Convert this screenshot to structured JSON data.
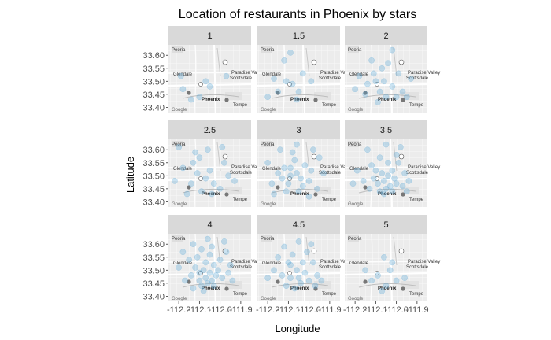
{
  "chart_data": {
    "type": "scatter",
    "title": "Location of restaurants in Phoenix by stars",
    "xlabel": "Longitude",
    "ylabel": "Latitude",
    "xlim": [
      -112.25,
      -111.85
    ],
    "ylim": [
      33.38,
      33.64
    ],
    "x_ticks": [
      -112.2,
      -112.1,
      -112.0,
      -111.9
    ],
    "x_tick_labels": [
      "-112.2",
      "-112.1",
      "-112.0",
      "-111.9"
    ],
    "y_ticks": [
      33.4,
      33.45,
      33.5,
      33.55,
      33.6
    ],
    "y_tick_labels": [
      "33.40",
      "33.45",
      "33.50",
      "33.55",
      "33.60"
    ],
    "facet_variable": "stars",
    "facets": [
      {
        "label": "1",
        "points": [
          [
            -112.18,
            33.47
          ],
          [
            -112.07,
            33.5
          ],
          [
            -112.1,
            33.44
          ],
          [
            -112.05,
            33.48
          ],
          [
            -112.14,
            33.43
          ],
          [
            -111.97,
            33.52
          ],
          [
            -112.19,
            33.52
          ]
        ]
      },
      {
        "label": "1.5",
        "points": [
          [
            -112.12,
            33.58
          ],
          [
            -112.08,
            33.49
          ],
          [
            -112.05,
            33.46
          ],
          [
            -112.15,
            33.46
          ],
          [
            -112.03,
            33.53
          ],
          [
            -112.2,
            33.44
          ],
          [
            -112.09,
            33.61
          ],
          [
            -111.99,
            33.5
          ],
          [
            -112.11,
            33.5
          ],
          [
            -112.06,
            33.43
          ],
          [
            -112.17,
            33.51
          ]
        ]
      },
      {
        "label": "2",
        "points": [
          [
            -112.02,
            33.62
          ],
          [
            -112.12,
            33.58
          ],
          [
            -112.07,
            33.55
          ],
          [
            -112.06,
            33.5
          ],
          [
            -112.1,
            33.5
          ],
          [
            -112.14,
            33.49
          ],
          [
            -112.02,
            33.48
          ],
          [
            -112.08,
            33.46
          ],
          [
            -111.97,
            33.46
          ],
          [
            -111.95,
            33.44
          ],
          [
            -112.15,
            33.45
          ],
          [
            -112.2,
            33.47
          ],
          [
            -111.99,
            33.53
          ],
          [
            -112.05,
            33.44
          ],
          [
            -112.11,
            33.53
          ],
          [
            -111.93,
            33.51
          ],
          [
            -112.18,
            33.52
          ],
          [
            -112.04,
            33.57
          ],
          [
            -112.0,
            33.44
          ],
          [
            -112.09,
            33.42
          ]
        ]
      },
      {
        "label": "2.5",
        "points": [
          [
            -112.2,
            33.61
          ],
          [
            -112.12,
            33.59
          ],
          [
            -112.1,
            33.57
          ],
          [
            -112.05,
            33.52
          ],
          [
            -112.07,
            33.49
          ],
          [
            -112.03,
            33.47
          ],
          [
            -112.14,
            33.47
          ],
          [
            -112.18,
            33.53
          ],
          [
            -111.98,
            33.55
          ],
          [
            -111.93,
            33.48
          ],
          [
            -112.09,
            33.44
          ],
          [
            -112.0,
            33.45
          ],
          [
            -112.16,
            33.43
          ],
          [
            -112.06,
            33.6
          ],
          [
            -112.11,
            33.51
          ],
          [
            -111.96,
            33.5
          ],
          [
            -112.13,
            33.55
          ],
          [
            -112.04,
            33.43
          ],
          [
            -112.22,
            33.48
          ],
          [
            -111.99,
            33.61
          ]
        ]
      },
      {
        "label": "3",
        "points": [
          [
            -112.06,
            33.62
          ],
          [
            -111.98,
            33.6
          ],
          [
            -112.14,
            33.6
          ],
          [
            -112.07,
            33.56
          ],
          [
            -112.12,
            33.53
          ],
          [
            -112.09,
            33.5
          ],
          [
            -112.04,
            33.49
          ],
          [
            -112.0,
            33.48
          ],
          [
            -112.1,
            33.47
          ],
          [
            -112.18,
            33.47
          ],
          [
            -111.96,
            33.45
          ],
          [
            -112.05,
            33.44
          ],
          [
            -112.15,
            33.51
          ],
          [
            -112.02,
            33.54
          ],
          [
            -111.93,
            33.51
          ],
          [
            -112.11,
            33.44
          ],
          [
            -112.2,
            33.55
          ],
          [
            -111.99,
            33.52
          ],
          [
            -112.08,
            33.59
          ],
          [
            -112.03,
            33.46
          ],
          [
            -112.13,
            33.49
          ],
          [
            -112.06,
            33.51
          ],
          [
            -111.95,
            33.57
          ],
          [
            -112.17,
            33.43
          ],
          [
            -112.0,
            33.42
          ],
          [
            -112.09,
            33.53
          ]
        ]
      },
      {
        "label": "3.5",
        "points": [
          [
            -112.05,
            33.62
          ],
          [
            -111.98,
            33.61
          ],
          [
            -112.14,
            33.6
          ],
          [
            -112.08,
            33.57
          ],
          [
            -112.12,
            33.54
          ],
          [
            -112.07,
            33.51
          ],
          [
            -112.04,
            33.5
          ],
          [
            -112.01,
            33.49
          ],
          [
            -112.06,
            33.48
          ],
          [
            -112.09,
            33.47
          ],
          [
            -112.03,
            33.46
          ],
          [
            -111.97,
            33.46
          ],
          [
            -112.0,
            33.47
          ],
          [
            -112.05,
            33.45
          ],
          [
            -111.94,
            33.48
          ],
          [
            -112.02,
            33.52
          ],
          [
            -112.11,
            33.49
          ],
          [
            -112.16,
            33.48
          ],
          [
            -112.19,
            33.52
          ],
          [
            -111.99,
            33.55
          ],
          [
            -112.08,
            33.44
          ],
          [
            -111.95,
            33.44
          ],
          [
            -112.1,
            33.52
          ],
          [
            -112.0,
            33.58
          ],
          [
            -112.04,
            33.55
          ],
          [
            -112.13,
            33.45
          ],
          [
            -112.21,
            33.47
          ],
          [
            -111.96,
            33.51
          ],
          [
            -112.06,
            33.43
          ],
          [
            -112.02,
            33.44
          ]
        ]
      },
      {
        "label": "4",
        "points": [
          [
            -112.06,
            33.62
          ],
          [
            -111.98,
            33.61
          ],
          [
            -112.13,
            33.6
          ],
          [
            -112.09,
            33.58
          ],
          [
            -112.05,
            33.56
          ],
          [
            -112.11,
            33.55
          ],
          [
            -112.07,
            33.53
          ],
          [
            -112.03,
            33.52
          ],
          [
            -112.08,
            33.5
          ],
          [
            -112.05,
            33.49
          ],
          [
            -112.02,
            33.48
          ],
          [
            -112.07,
            33.47
          ],
          [
            -112.1,
            33.46
          ],
          [
            -112.04,
            33.46
          ],
          [
            -111.99,
            33.47
          ],
          [
            -112.06,
            33.45
          ],
          [
            -112.09,
            33.44
          ],
          [
            -112.03,
            33.44
          ],
          [
            -111.96,
            33.49
          ],
          [
            -111.94,
            33.46
          ],
          [
            -112.14,
            33.48
          ],
          [
            -112.17,
            33.46
          ],
          [
            -112.2,
            33.51
          ],
          [
            -112.15,
            33.54
          ],
          [
            -112.0,
            33.54
          ],
          [
            -111.97,
            33.57
          ],
          [
            -112.12,
            33.51
          ],
          [
            -112.01,
            33.5
          ],
          [
            -112.08,
            33.42
          ],
          [
            -112.13,
            33.43
          ],
          [
            -112.18,
            33.57
          ],
          [
            -111.95,
            33.52
          ],
          [
            -112.04,
            33.59
          ],
          [
            -112.1,
            33.49
          ]
        ]
      },
      {
        "label": "4.5",
        "points": [
          [
            -112.05,
            33.61
          ],
          [
            -111.99,
            33.6
          ],
          [
            -112.12,
            33.59
          ],
          [
            -112.08,
            33.56
          ],
          [
            -112.03,
            33.53
          ],
          [
            -112.09,
            33.52
          ],
          [
            -112.06,
            33.5
          ],
          [
            -112.02,
            33.49
          ],
          [
            -112.05,
            33.47
          ],
          [
            -112.09,
            33.47
          ],
          [
            -112.0,
            33.46
          ],
          [
            -112.04,
            33.45
          ],
          [
            -111.96,
            33.48
          ],
          [
            -112.13,
            33.48
          ],
          [
            -112.17,
            33.5
          ],
          [
            -112.11,
            33.44
          ],
          [
            -111.98,
            33.53
          ],
          [
            -112.07,
            33.43
          ],
          [
            -111.94,
            33.46
          ],
          [
            -112.15,
            33.55
          ],
          [
            -112.2,
            33.47
          ],
          [
            -112.01,
            33.57
          ],
          [
            -112.1,
            33.53
          ],
          [
            -111.97,
            33.44
          ]
        ]
      },
      {
        "label": "5",
        "points": [
          [
            -112.06,
            33.55
          ],
          [
            -112.03,
            33.5
          ],
          [
            -112.09,
            33.48
          ],
          [
            -112.0,
            33.46
          ],
          [
            -112.05,
            33.44
          ],
          [
            -111.96,
            33.47
          ],
          [
            -112.12,
            33.46
          ],
          [
            -112.02,
            33.53
          ],
          [
            -112.15,
            33.5
          ],
          [
            -112.07,
            33.42
          ]
        ]
      }
    ],
    "point_color": "#5aa7d6",
    "map_labels": [
      "Glendale",
      "Peoria",
      "Phoenix",
      "Paradise Valley",
      "Scottsdale",
      "Tempe",
      "Google"
    ],
    "grid": false,
    "legend": "none"
  }
}
